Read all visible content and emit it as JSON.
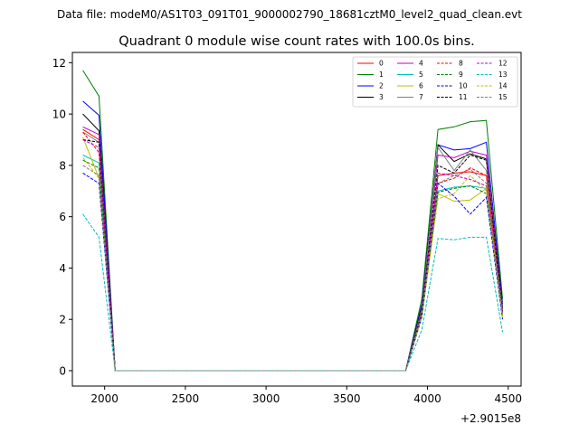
{
  "figure": {
    "suptitle": "Data file: modeM0/AS1T03_091T01_9000002790_18681cztM0_level2_quad_clean.evt"
  },
  "chart_data": {
    "type": "line",
    "title": "Quadrant 0 module wise count rates with 100.0s bins.",
    "xlabel": "",
    "ylabel": "",
    "x_offset_label": "+2.9015e8",
    "xlim": [
      1800,
      4580
    ],
    "ylim": [
      -0.6,
      12.4
    ],
    "xticks": [
      2000,
      2500,
      3000,
      3500,
      4000,
      4500
    ],
    "yticks": [
      0,
      2,
      4,
      6,
      8,
      10,
      12
    ],
    "grid": false,
    "legend_location": "top-right",
    "legend_columns": 4,
    "x": [
      1865,
      1965,
      2065,
      2165,
      2265,
      2365,
      2465,
      2565,
      2665,
      2765,
      2865,
      2965,
      3065,
      3165,
      3265,
      3365,
      3465,
      3565,
      3665,
      3765,
      3865,
      3965,
      4065,
      4165,
      4265,
      4365,
      4465
    ],
    "series": [
      {
        "name": "0",
        "color": "#ff0000",
        "dash": "solid",
        "values": [
          9.4,
          9.0,
          0,
          0,
          0,
          0,
          0,
          0,
          0,
          0,
          0,
          0,
          0,
          0,
          0,
          0,
          0,
          0,
          0,
          0,
          0,
          2.3,
          7.6,
          7.7,
          7.75,
          7.6,
          2.3
        ]
      },
      {
        "name": "1",
        "color": "#008000",
        "dash": "solid",
        "values": [
          11.7,
          10.7,
          0,
          0,
          0,
          0,
          0,
          0,
          0,
          0,
          0,
          0,
          0,
          0,
          0,
          0,
          0,
          0,
          0,
          0,
          0,
          2.8,
          9.4,
          9.5,
          9.7,
          9.75,
          2.8
        ]
      },
      {
        "name": "2",
        "color": "#0000ff",
        "dash": "solid",
        "values": [
          10.5,
          9.95,
          0,
          0,
          0,
          0,
          0,
          0,
          0,
          0,
          0,
          0,
          0,
          0,
          0,
          0,
          0,
          0,
          0,
          0,
          0,
          2.6,
          8.8,
          8.6,
          8.65,
          8.9,
          2.6
        ]
      },
      {
        "name": "3",
        "color": "#000000",
        "dash": "solid",
        "values": [
          10.0,
          9.35,
          0,
          0,
          0,
          0,
          0,
          0,
          0,
          0,
          0,
          0,
          0,
          0,
          0,
          0,
          0,
          0,
          0,
          0,
          0,
          2.5,
          8.8,
          8.15,
          8.45,
          8.25,
          2.5
        ]
      },
      {
        "name": "4",
        "color": "#bf00bf",
        "dash": "solid",
        "values": [
          9.5,
          9.2,
          0,
          0,
          0,
          0,
          0,
          0,
          0,
          0,
          0,
          0,
          0,
          0,
          0,
          0,
          0,
          0,
          0,
          0,
          0,
          2.4,
          8.4,
          8.3,
          8.55,
          8.4,
          2.4
        ]
      },
      {
        "name": "5",
        "color": "#00bfbf",
        "dash": "solid",
        "values": [
          8.4,
          8.1,
          0,
          0,
          0,
          0,
          0,
          0,
          0,
          0,
          0,
          0,
          0,
          0,
          0,
          0,
          0,
          0,
          0,
          0,
          0,
          2.1,
          7.0,
          7.15,
          7.2,
          7.1,
          2.1
        ]
      },
      {
        "name": "6",
        "color": "#bfbf00",
        "dash": "solid",
        "values": [
          9.1,
          7.5,
          0,
          0,
          0,
          0,
          0,
          0,
          0,
          0,
          0,
          0,
          0,
          0,
          0,
          0,
          0,
          0,
          0,
          0,
          0,
          2.1,
          6.9,
          6.6,
          6.65,
          7.1,
          2.1
        ]
      },
      {
        "name": "7",
        "color": "#808080",
        "dash": "solid",
        "values": [
          9.3,
          8.9,
          0,
          0,
          0,
          0,
          0,
          0,
          0,
          0,
          0,
          0,
          0,
          0,
          0,
          0,
          0,
          0,
          0,
          0,
          0,
          2.4,
          8.7,
          7.8,
          8.6,
          7.8,
          2.4
        ]
      },
      {
        "name": "8",
        "color": "#ff0000",
        "dash": "dashed",
        "values": [
          9.3,
          8.5,
          0,
          0,
          0,
          0,
          0,
          0,
          0,
          0,
          0,
          0,
          0,
          0,
          0,
          0,
          0,
          0,
          0,
          0,
          0,
          2.2,
          7.3,
          7.5,
          7.9,
          7.6,
          2.2
        ]
      },
      {
        "name": "9",
        "color": "#008000",
        "dash": "dashed",
        "values": [
          8.2,
          7.9,
          0,
          0,
          0,
          0,
          0,
          0,
          0,
          0,
          0,
          0,
          0,
          0,
          0,
          0,
          0,
          0,
          0,
          0,
          0,
          2.1,
          6.95,
          7.1,
          7.2,
          6.9,
          2.1
        ]
      },
      {
        "name": "10",
        "color": "#0000ff",
        "dash": "dashed",
        "values": [
          7.7,
          7.3,
          0,
          0,
          0,
          0,
          0,
          0,
          0,
          0,
          0,
          0,
          0,
          0,
          0,
          0,
          0,
          0,
          0,
          0,
          0,
          2.1,
          7.3,
          6.8,
          6.1,
          6.75,
          2.0
        ]
      },
      {
        "name": "11",
        "color": "#000000",
        "dash": "dashed",
        "values": [
          9.0,
          8.9,
          0,
          0,
          0,
          0,
          0,
          0,
          0,
          0,
          0,
          0,
          0,
          0,
          0,
          0,
          0,
          0,
          0,
          0,
          0,
          2.3,
          8.0,
          7.7,
          8.4,
          8.2,
          2.3
        ]
      },
      {
        "name": "12",
        "color": "#bf00bf",
        "dash": "dashed",
        "values": [
          9.0,
          8.7,
          0,
          0,
          0,
          0,
          0,
          0,
          0,
          0,
          0,
          0,
          0,
          0,
          0,
          0,
          0,
          0,
          0,
          0,
          0,
          2.2,
          7.7,
          7.6,
          7.45,
          7.2,
          2.2
        ]
      },
      {
        "name": "13",
        "color": "#00bfbf",
        "dash": "dashed",
        "values": [
          6.1,
          5.2,
          0,
          0,
          0,
          0,
          0,
          0,
          0,
          0,
          0,
          0,
          0,
          0,
          0,
          0,
          0,
          0,
          0,
          0,
          0,
          1.6,
          5.15,
          5.1,
          5.2,
          5.2,
          1.5
        ]
      },
      {
        "name": "14",
        "color": "#bfbf00",
        "dash": "dashed",
        "values": [
          8.3,
          7.5,
          0,
          0,
          0,
          0,
          0,
          0,
          0,
          0,
          0,
          0,
          0,
          0,
          0,
          0,
          0,
          0,
          0,
          0,
          0,
          2.1,
          6.7,
          6.9,
          7.6,
          7.0,
          2.1
        ]
      },
      {
        "name": "15",
        "color": "#808080",
        "dash": "dashed",
        "values": [
          8.0,
          7.6,
          0,
          0,
          0,
          0,
          0,
          0,
          0,
          0,
          0,
          0,
          0,
          0,
          0,
          0,
          0,
          0,
          0,
          0,
          0,
          2.2,
          7.3,
          7.6,
          7.85,
          7.3,
          2.2
        ]
      }
    ]
  }
}
